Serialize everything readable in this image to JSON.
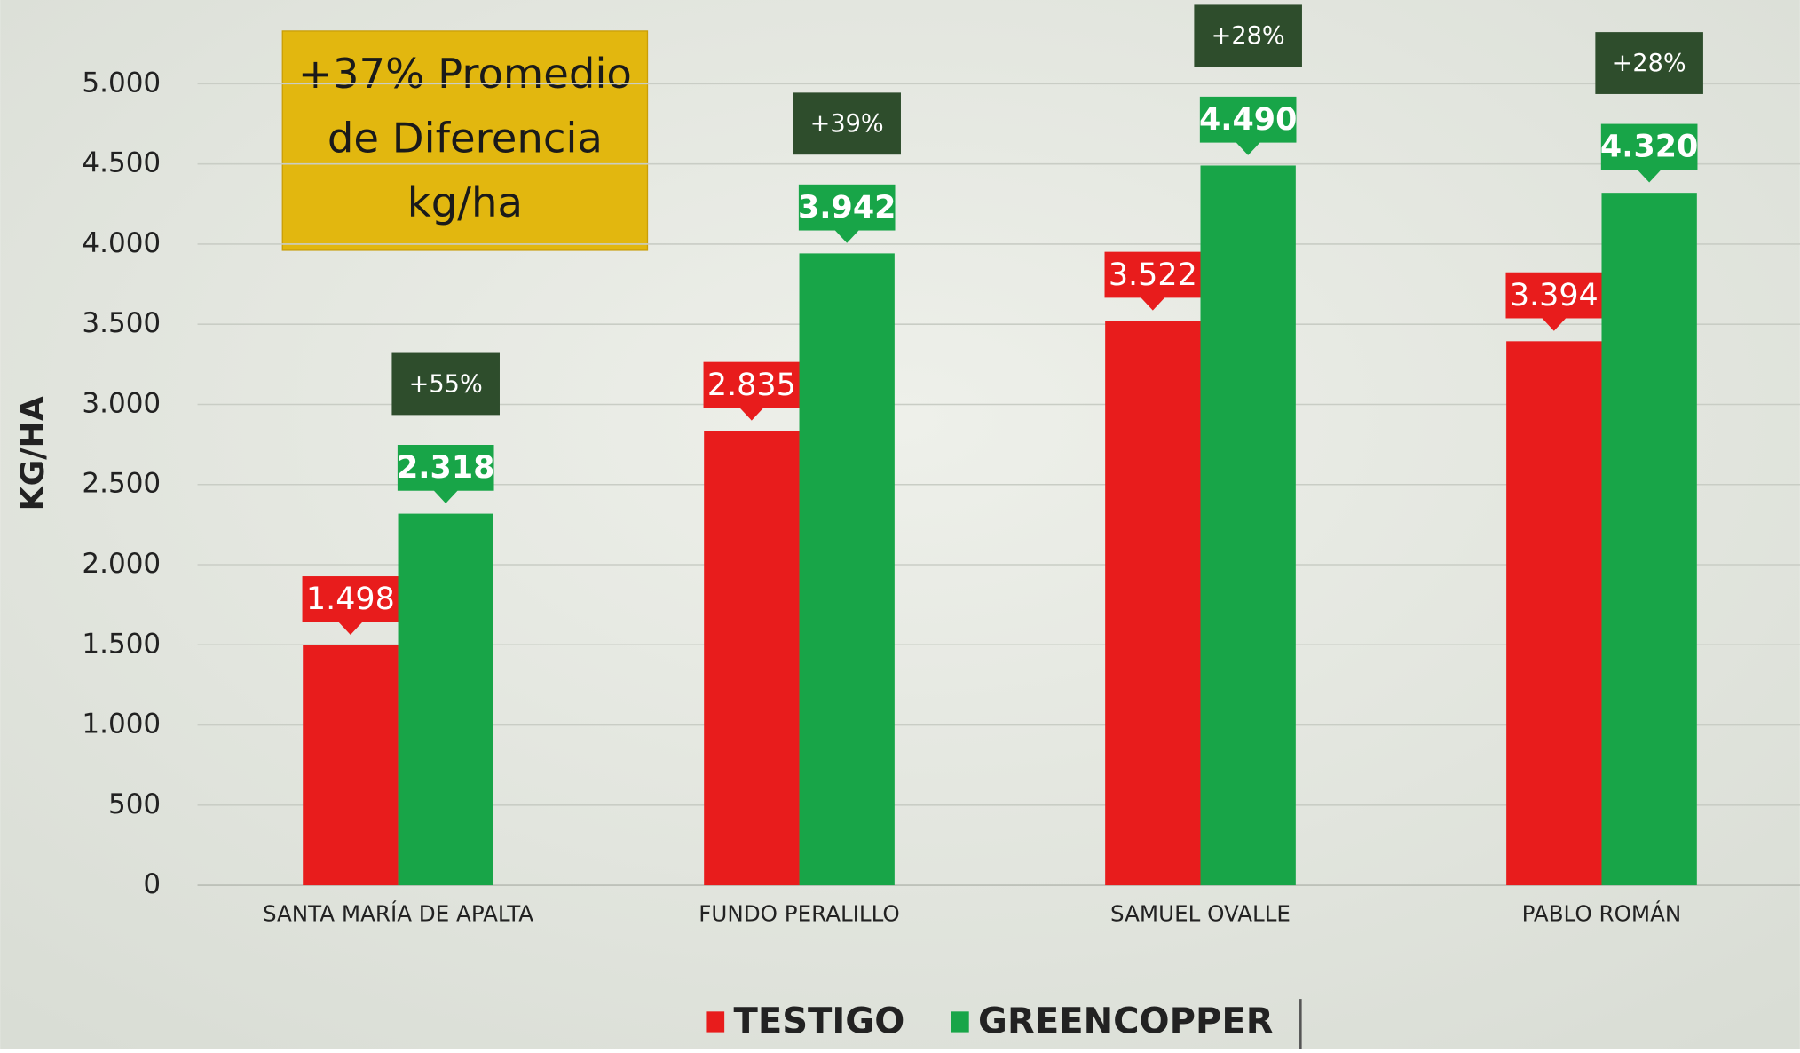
{
  "chart_data": {
    "type": "bar",
    "annotation": [
      "+37% Promedio",
      "de Diferencia",
      "kg/ha"
    ],
    "y_label": "KG/HA",
    "categories": [
      "SANTA MARÍA DE APALTA",
      "FUNDO PERALILLO",
      "SAMUEL OVALLE",
      "PABLO ROMÁN"
    ],
    "series": [
      {
        "name": "TESTIGO",
        "color": "#e81c1c",
        "values": [
          1498,
          2835,
          3522,
          3394
        ],
        "value_labels": [
          "1.498",
          "2.835",
          "3.522",
          "3.394"
        ]
      },
      {
        "name": "GREENCOPPER",
        "color": "#18a548",
        "values": [
          2318,
          3942,
          4490,
          4320
        ],
        "value_labels": [
          "2.318",
          "3.942",
          "4.490",
          "4.320"
        ]
      }
    ],
    "differences": {
      "values": [
        55,
        39,
        28,
        28
      ],
      "value_labels": [
        "+55%",
        "+39%",
        "+28%",
        "+28%"
      ],
      "color": "#2e4d2c"
    },
    "ylim": [
      0,
      5000
    ],
    "yticks": [
      0,
      500,
      {
        "value": 1000,
        "label": "1.000"
      },
      {
        "value": 1500,
        "label": "1.500"
      },
      {
        "value": 2000,
        "label": "2.000"
      },
      {
        "value": 2500,
        "label": "2.500"
      },
      {
        "value": 3000,
        "label": "3.000"
      },
      {
        "value": 3500,
        "label": "3.500"
      },
      {
        "value": 4000,
        "label": "4.000"
      },
      {
        "value": 4500,
        "label": "4.500"
      },
      {
        "value": 5000,
        "label": "5.000"
      }
    ],
    "grid": true,
    "legend": "bottom"
  }
}
